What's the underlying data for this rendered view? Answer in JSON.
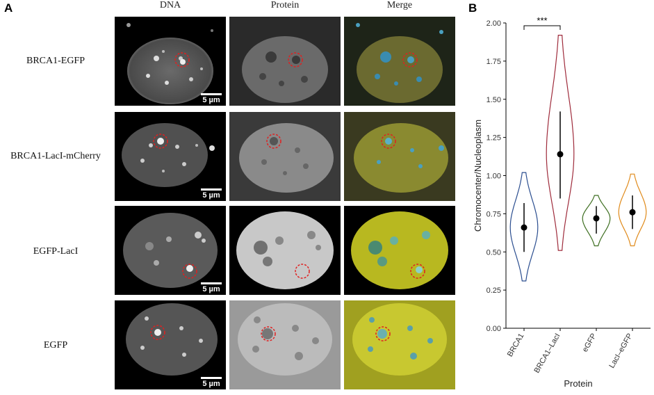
{
  "panel_a": {
    "letter": "A",
    "columns": [
      "DNA",
      "Protein",
      "Merge"
    ],
    "rows": [
      "BRCA1-EGFP",
      "BRCA1-LacI-mCherry",
      "EGFP-LacI",
      "EGFP"
    ],
    "scalebar_label": "5 µm"
  },
  "panel_b": {
    "letter": "B"
  },
  "chart_data": {
    "type": "violin",
    "categories": [
      "BRCA1",
      "BRCA1–LacI",
      "eGFP",
      "LacI–eGFP"
    ],
    "xlabel": "Protein",
    "ylabel": "Chromocenter/Nucleoplasm",
    "ylim": [
      0,
      2.0
    ],
    "yticks": [
      "0.00",
      "0.25",
      "0.50",
      "0.75",
      "1.00",
      "1.25",
      "1.50",
      "1.75",
      "2.00"
    ],
    "grid": false,
    "series": [
      {
        "category": "BRCA1",
        "color": "#2a4d8f",
        "min": 0.31,
        "max": 1.02,
        "mean": 0.66,
        "ci_low": 0.5,
        "ci_high": 0.82
      },
      {
        "category": "BRCA1–LacI",
        "color": "#9e2a3a",
        "min": 0.51,
        "max": 1.92,
        "mean": 1.14,
        "ci_low": 0.85,
        "ci_high": 1.42
      },
      {
        "category": "eGFP",
        "color": "#3d6e20",
        "min": 0.54,
        "max": 0.87,
        "mean": 0.72,
        "ci_low": 0.62,
        "ci_high": 0.8
      },
      {
        "category": "LacI–eGFP",
        "color": "#e08a1a",
        "min": 0.54,
        "max": 1.01,
        "mean": 0.76,
        "ci_low": 0.65,
        "ci_high": 0.87
      }
    ],
    "significance": {
      "from": "BRCA1",
      "to": "BRCA1–LacI",
      "label": "***",
      "y": 2.0
    }
  }
}
